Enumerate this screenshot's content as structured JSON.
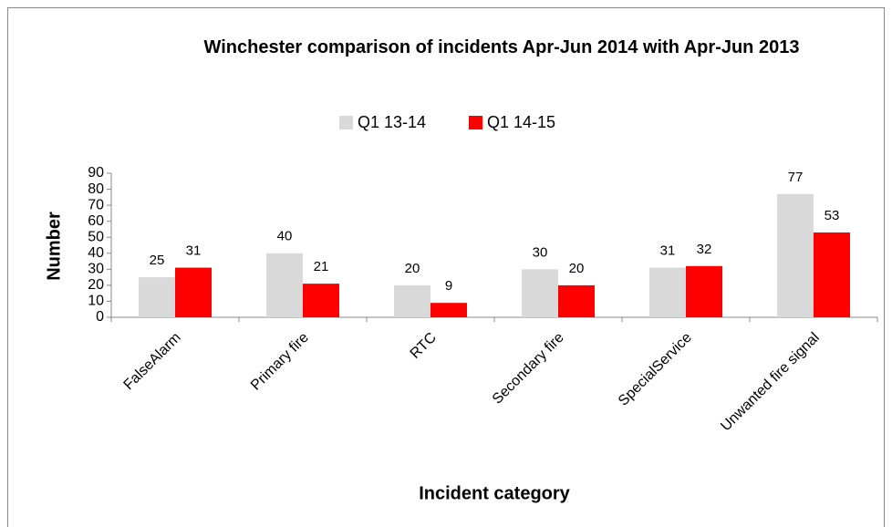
{
  "chart_data": {
    "type": "bar",
    "title": "Winchester comparison of incidents Apr-Jun 2014 with Apr-Jun 2013",
    "x_label": "Incident category",
    "y_label": "Number",
    "categories": [
      "FalseAlarm",
      "Primary fire",
      "RTC",
      "Secondary fire",
      "SpecialService",
      "Unwanted fire signal"
    ],
    "series": [
      {
        "name": "Q1 13-14",
        "color": "#d9d9d9",
        "values": [
          25,
          40,
          20,
          30,
          31,
          77
        ]
      },
      {
        "name": "Q1 14-15",
        "color": "#ff0000",
        "values": [
          31,
          21,
          9,
          20,
          32,
          53
        ]
      }
    ],
    "ylim": [
      0,
      90
    ],
    "yticks": [
      0,
      10,
      20,
      30,
      40,
      50,
      60,
      70,
      80,
      90
    ],
    "legend": "top",
    "grid": false
  }
}
